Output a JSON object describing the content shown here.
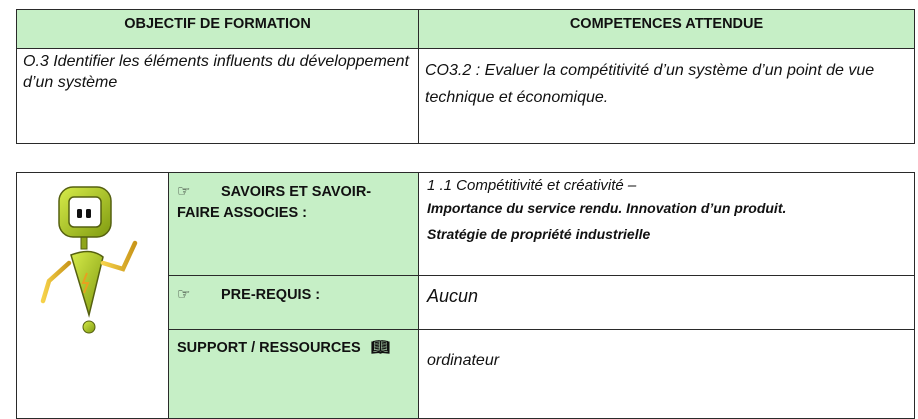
{
  "objectif_table": {
    "header_left": "OBJECTIF DE FORMATION",
    "header_right": "COMPETENCES ATTENDUE",
    "objectif_text": "O.3 Identifier les éléments influents du développement d’un système",
    "competence_text": "CO3.2 : Evaluer la compétitivité d’un système d’un point de vue technique et économique."
  },
  "details_table": {
    "mascot_icon": "robot-mascot-icon",
    "pointing_icon": "pointing-hand-icon",
    "book_icon": "open-book-icon",
    "savoirs_label_line1": "SAVOIRS ET SAVOIR-",
    "savoirs_label_line2": "FAIRE ASSOCIES :",
    "savoirs_line1": "1 .1 Compétitivité et créativité –",
    "savoirs_line2": "Importance du service rendu. Innovation d’un produit.",
    "savoirs_line3": "Stratégie de propriété industrielle",
    "prerequis_label": "PRE-REQUIS :",
    "prerequis_value": "Aucun",
    "support_label": "SUPPORT / RESSOURCES",
    "support_value": "ordinateur"
  },
  "colors": {
    "header_green": "#c6efc6",
    "robot_green": "#a7c51c"
  }
}
